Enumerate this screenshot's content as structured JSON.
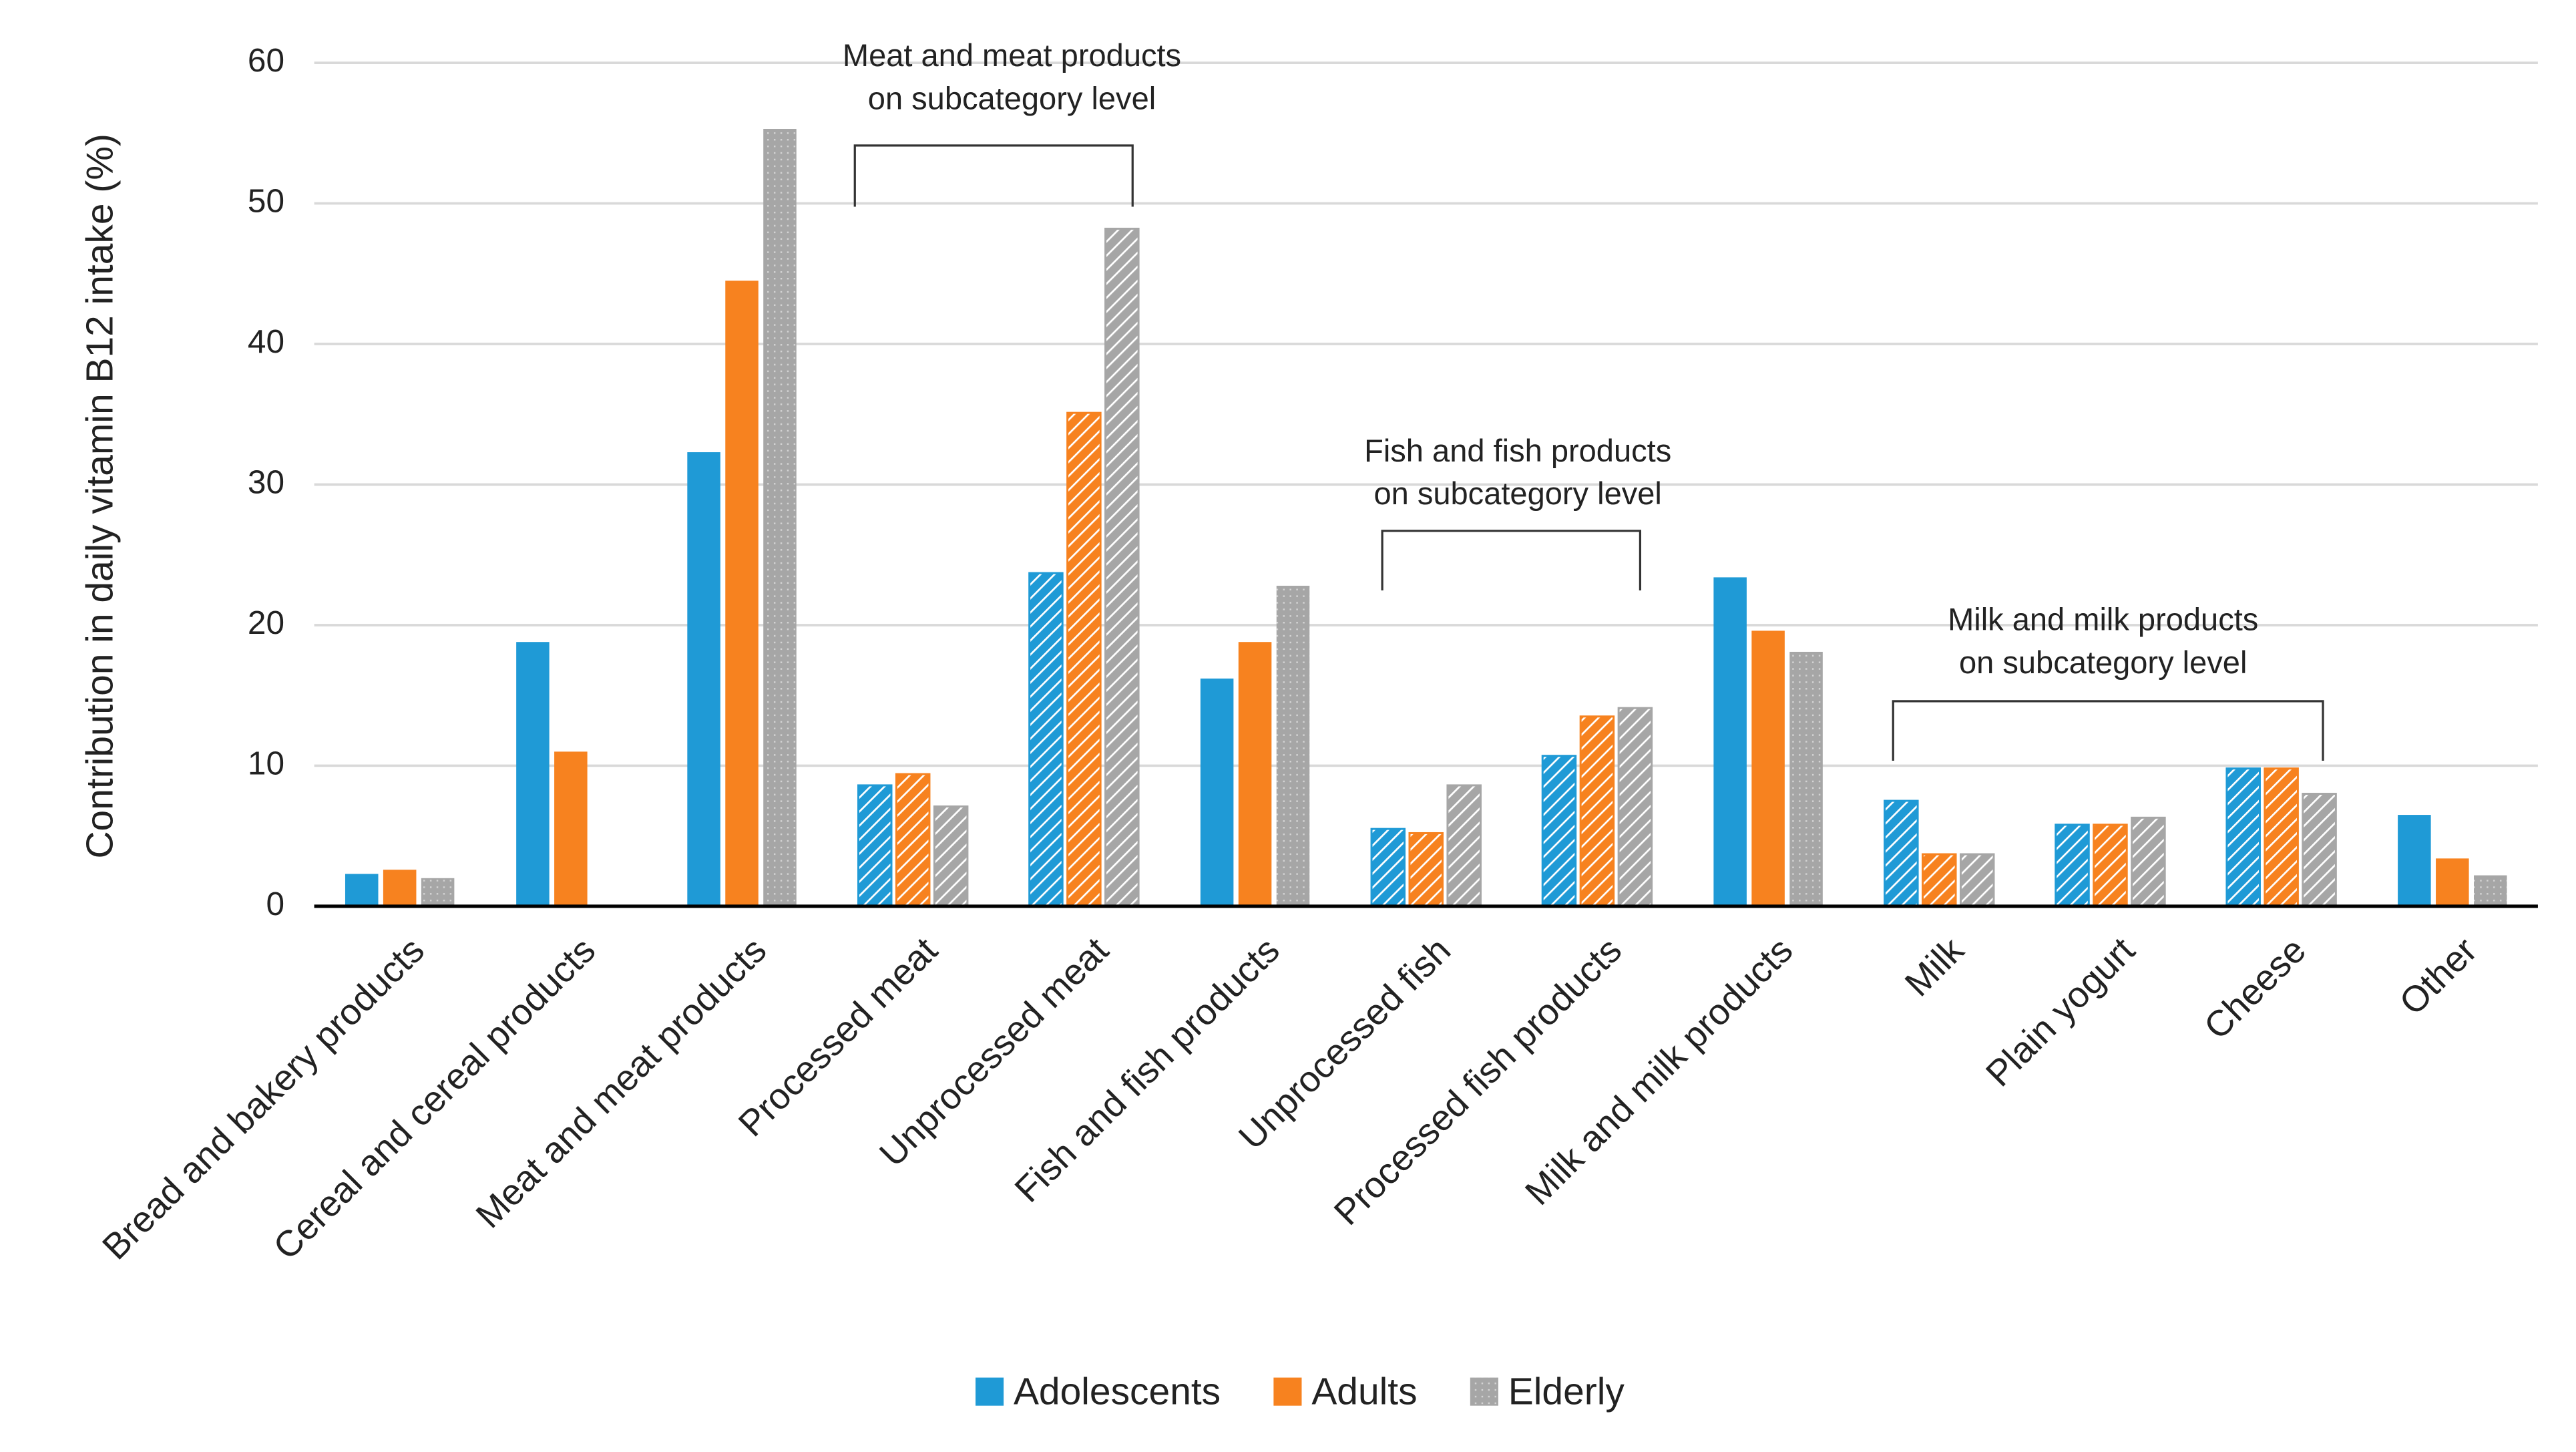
{
  "chart_data": {
    "type": "bar",
    "ylabel": "Contribution in daily vitamin B12 intake (%)",
    "categories": [
      "Bread and bakery products",
      "Cereal and cereal products",
      "Meat and meat products",
      "Processed meat",
      "Unprocessed meat",
      "Fish and fish products",
      "Unprocessed fish",
      "Processed fish products",
      "Milk and milk products",
      "Milk",
      "Plain yogurt",
      "Cheese",
      "Other"
    ],
    "series": [
      {
        "name": "Adolescents",
        "color": "#1f9ad6",
        "values": [
          2.3,
          18.8,
          32.3,
          8.6,
          23.7,
          16.2,
          5.5,
          10.7,
          23.4,
          7.5,
          5.8,
          9.8,
          6.5
        ]
      },
      {
        "name": "Adults",
        "color": "#f7821f",
        "values": [
          2.6,
          11.0,
          44.5,
          9.4,
          35.1,
          18.8,
          5.2,
          13.5,
          19.6,
          3.7,
          5.8,
          9.8,
          3.4
        ]
      },
      {
        "name": "Elderly",
        "color": "#a6a6a6",
        "values": [
          2.0,
          0,
          55.3,
          7.1,
          48.2,
          22.8,
          8.6,
          14.1,
          18.1,
          3.7,
          6.3,
          8.0,
          2.2
        ]
      }
    ],
    "hatched_categories": [
      3,
      4,
      6,
      7,
      9,
      10,
      11
    ],
    "annotations": [
      {
        "lines": [
          "Meat and meat products",
          "on subcategory level"
        ]
      },
      {
        "lines": [
          "Fish and fish products",
          "on subcategory level"
        ]
      },
      {
        "lines": [
          "Milk and milk products",
          "on subcategory level"
        ]
      }
    ],
    "ylim": [
      0,
      60
    ],
    "yticks": [
      0,
      10,
      20,
      30,
      40,
      50,
      60
    ],
    "grid": true,
    "legend": "bottom"
  }
}
